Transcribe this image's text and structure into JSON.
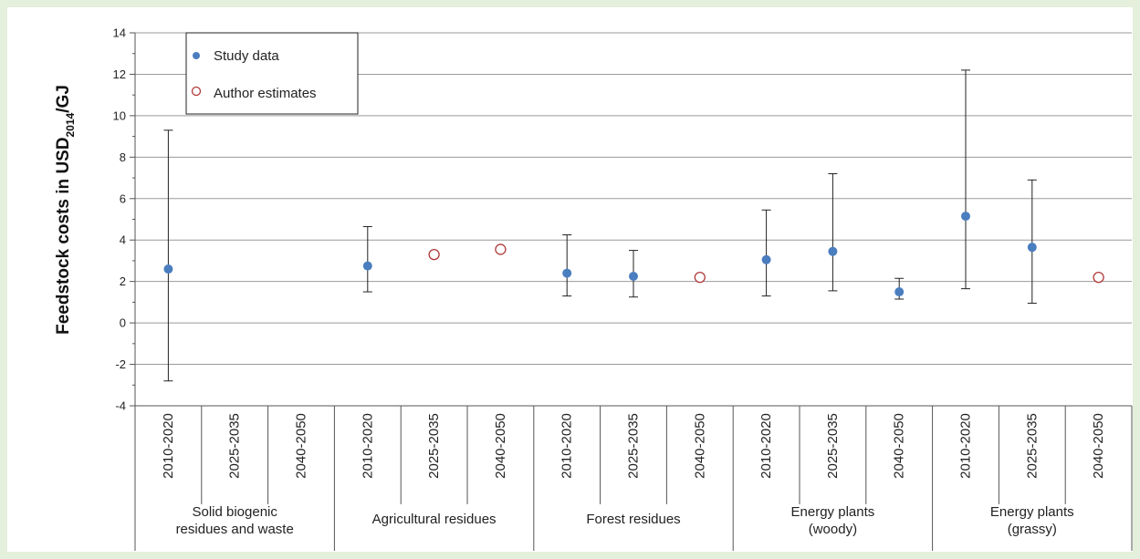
{
  "chart_data": {
    "type": "scatter",
    "ylabel": "Feedstock costs in USD",
    "ylabel_sub": "2014",
    "ylabel_suffix": "/GJ",
    "ylim": [
      -4,
      14
    ],
    "yticks": [
      -4,
      -2,
      0,
      2,
      4,
      6,
      8,
      10,
      12,
      14
    ],
    "grid": true,
    "legend_position": "top-left",
    "colors": {
      "study": "#4a7ebf",
      "author": "#b03a3a"
    },
    "groups": [
      {
        "lines": [
          "Solid biogenic",
          "residues and waste"
        ],
        "periods": [
          "2010-2020",
          "2025-2035",
          "2040-2050"
        ]
      },
      {
        "lines": [
          "Agricultural residues"
        ],
        "periods": [
          "2010-2020",
          "2025-2035",
          "2040-2050"
        ]
      },
      {
        "lines": [
          "Forest residues"
        ],
        "periods": [
          "2010-2020",
          "2025-2035",
          "2040-2050"
        ]
      },
      {
        "lines": [
          "Energy plants",
          "(woody)"
        ],
        "periods": [
          "2010-2020",
          "2025-2035",
          "2040-2050"
        ]
      },
      {
        "lines": [
          "Energy plants",
          "(grassy)"
        ],
        "periods": [
          "2010-2020",
          "2025-2035",
          "2040-2050"
        ]
      }
    ],
    "series": [
      {
        "name": "Study data",
        "marker": "filled-circle",
        "points": [
          {
            "slot": 0,
            "y": 2.6,
            "low": -2.8,
            "high": 9.3
          },
          {
            "slot": 3,
            "y": 2.75,
            "low": 1.5,
            "high": 4.65
          },
          {
            "slot": 6,
            "y": 2.4,
            "low": 1.3,
            "high": 4.25
          },
          {
            "slot": 7,
            "y": 2.25,
            "low": 1.25,
            "high": 3.5
          },
          {
            "slot": 9,
            "y": 3.05,
            "low": 1.3,
            "high": 5.45
          },
          {
            "slot": 10,
            "y": 3.45,
            "low": 1.55,
            "high": 7.2
          },
          {
            "slot": 11,
            "y": 1.5,
            "low": 1.15,
            "high": 2.15
          },
          {
            "slot": 12,
            "y": 5.15,
            "low": 1.65,
            "high": 12.2
          },
          {
            "slot": 13,
            "y": 3.65,
            "low": 0.95,
            "high": 6.9
          }
        ]
      },
      {
        "name": "Author estimates",
        "marker": "open-circle",
        "points": [
          {
            "slot": 4,
            "y": 3.3
          },
          {
            "slot": 5,
            "y": 3.55
          },
          {
            "slot": 8,
            "y": 2.2
          },
          {
            "slot": 14,
            "y": 2.2
          }
        ]
      }
    ]
  }
}
